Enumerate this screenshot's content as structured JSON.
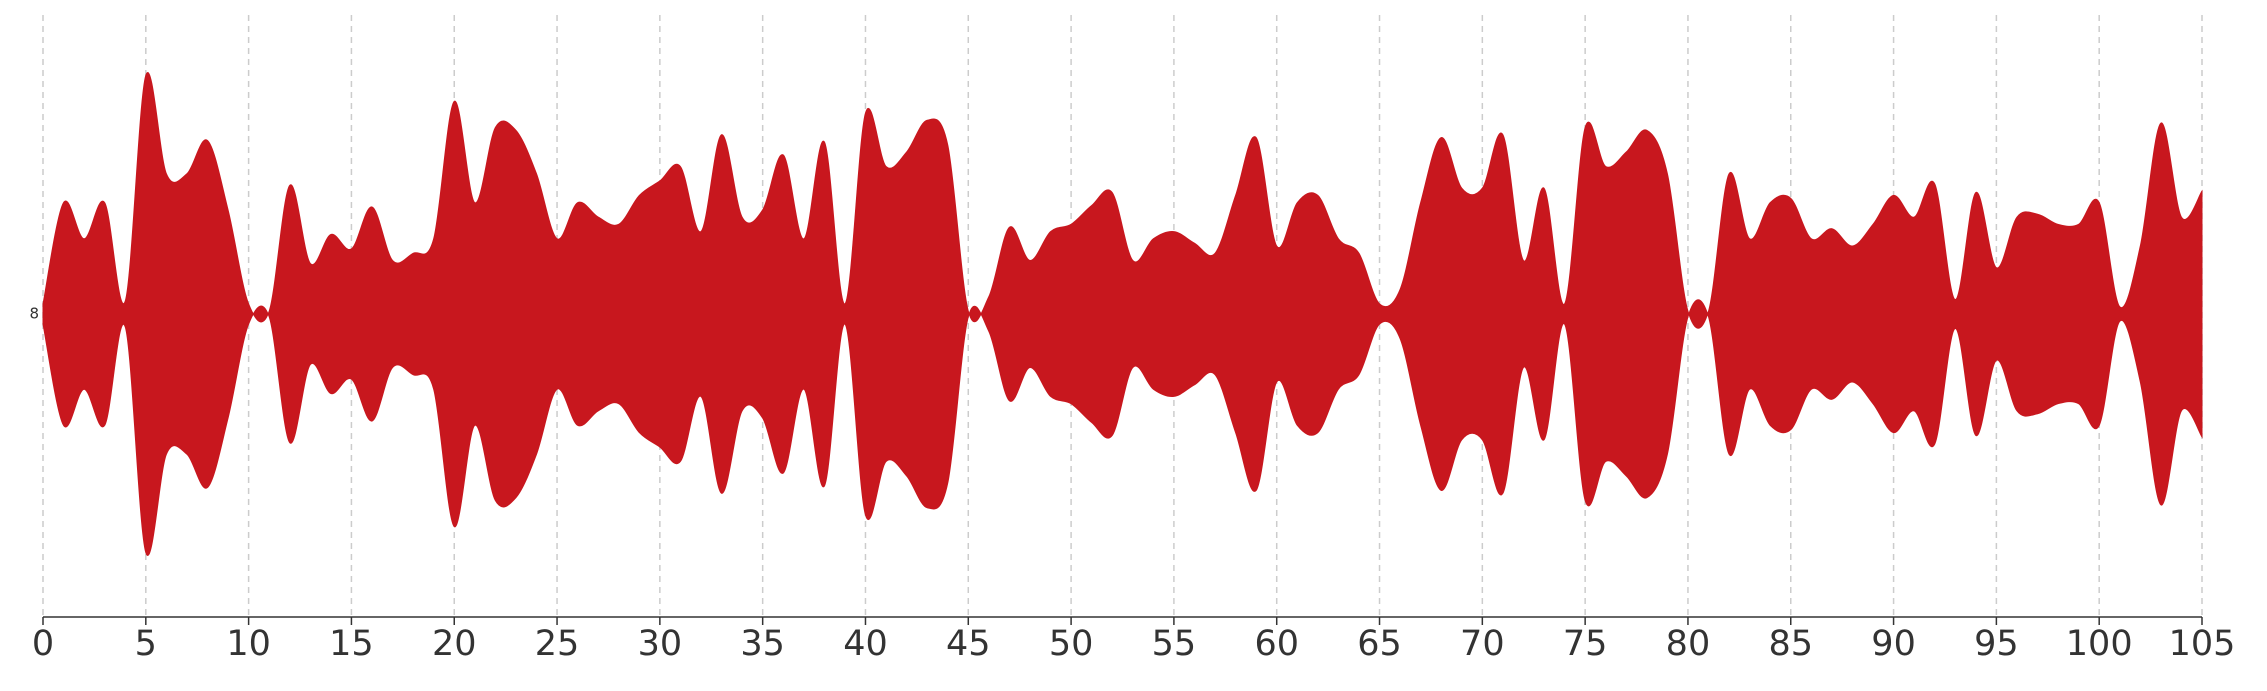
{
  "chart_data": {
    "type": "stream",
    "x": [
      0,
      1,
      2,
      3,
      4,
      5,
      6,
      7,
      8,
      9,
      10,
      11,
      12,
      13,
      14,
      15,
      16,
      17,
      18,
      19,
      20,
      21,
      22,
      23,
      24,
      25,
      26,
      27,
      28,
      29,
      30,
      31,
      32,
      33,
      34,
      35,
      36,
      37,
      38,
      39,
      40,
      41,
      42,
      43,
      44,
      45,
      46,
      47,
      48,
      49,
      50,
      51,
      52,
      53,
      54,
      55,
      56,
      57,
      58,
      59,
      60,
      61,
      62,
      63,
      64,
      65,
      66,
      67,
      68,
      69,
      70,
      71,
      72,
      73,
      74,
      75,
      76,
      77,
      78,
      79,
      80,
      81,
      82,
      83,
      84,
      85,
      86,
      87,
      88,
      89,
      90,
      91,
      92,
      93,
      94,
      95,
      96,
      97,
      98,
      99,
      100,
      101,
      102,
      103,
      104,
      105
    ],
    "series": [
      {
        "name": "8",
        "color": "#c8171e",
        "values": [
          7,
          77,
          52,
          77,
          9,
          165,
          97,
          97,
          120,
          72,
          7,
          2,
          89,
          35,
          55,
          45,
          74,
          37,
          42,
          52,
          147,
          77,
          129,
          127,
          97,
          52,
          77,
          67,
          62,
          82,
          92,
          102,
          57,
          124,
          67,
          72,
          110,
          52,
          119,
          7,
          139,
          102,
          112,
          134,
          117,
          2,
          12,
          60,
          37,
          57,
          62,
          75,
          84,
          37,
          52,
          57,
          49,
          42,
          82,
          122,
          47,
          77,
          82,
          52,
          42,
          7,
          17,
          77,
          122,
          87,
          87,
          124,
          37,
          87,
          7,
          129,
          102,
          112,
          127,
          97,
          2,
          2,
          97,
          52,
          77,
          80,
          52,
          59,
          47,
          62,
          82,
          67,
          90,
          10,
          84,
          32,
          67,
          69,
          62,
          62,
          77,
          5,
          47,
          132,
          67,
          85
        ]
      }
    ],
    "xlim": [
      0,
      105
    ],
    "xticks": [
      0,
      5,
      10,
      15,
      20,
      25,
      30,
      35,
      40,
      45,
      50,
      55,
      60,
      65,
      70,
      75,
      80,
      85,
      90,
      95,
      100,
      105
    ],
    "grid": true
  }
}
